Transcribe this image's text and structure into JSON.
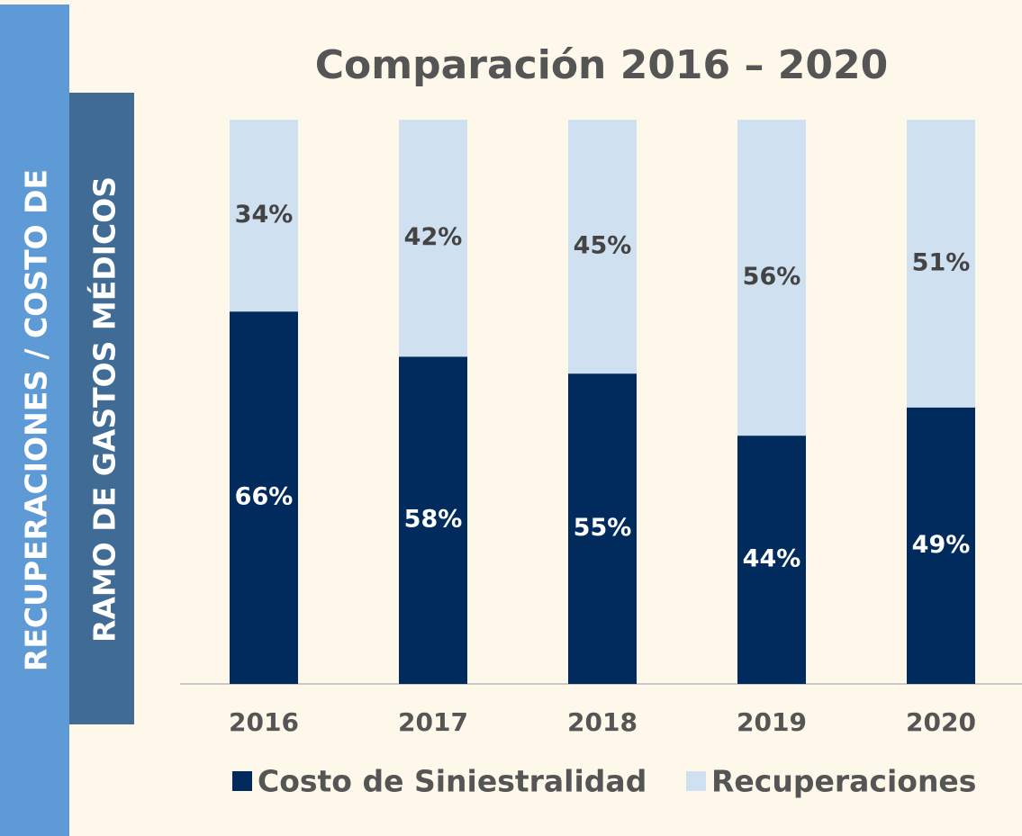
{
  "chart_data": {
    "type": "stacked-bar",
    "title": "Comparación 2016 – 2020",
    "ylabel_lines": [
      "RECUPERACIONES / COSTO DE",
      "RAMO DE GASTOS MÉDICOS"
    ],
    "categories": [
      "2016",
      "2017",
      "2018",
      "2019",
      "2020"
    ],
    "series": [
      {
        "name": "Costo de Siniestralidad",
        "color": "#002b5c",
        "values": [
          66,
          58,
          55,
          44,
          49
        ],
        "value_labels": [
          "66%",
          "58%",
          "55%",
          "44%",
          "49%"
        ]
      },
      {
        "name": "Recuperaciones",
        "color": "#cfe0f1",
        "values": [
          34,
          42,
          45,
          56,
          51
        ],
        "value_labels": [
          "34%",
          "42%",
          "45%",
          "56%",
          "51%"
        ]
      }
    ],
    "ylim": [
      0,
      100
    ]
  }
}
